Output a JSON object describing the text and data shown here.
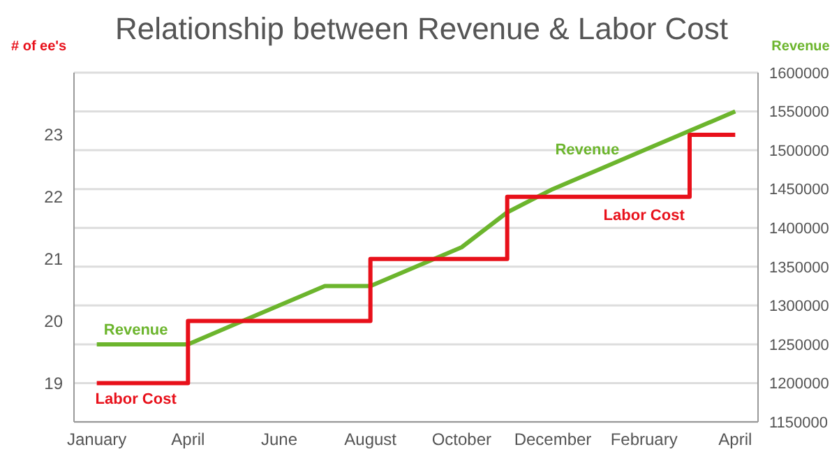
{
  "chart_data": {
    "type": "line",
    "title": "Relationship between Revenue & Labor Cost",
    "ylabel": "# of ee's",
    "y2label": "Revenue",
    "categories": [
      "January",
      null,
      "April",
      null,
      "June",
      null,
      "August",
      null,
      "October",
      null,
      "December",
      null,
      "February",
      null,
      "April"
    ],
    "ylim": [
      18.375,
      24
    ],
    "yticks": [
      19,
      20,
      21,
      22,
      23
    ],
    "y2lim": [
      1150000,
      1600000
    ],
    "y2ticks": [
      1150000,
      1200000,
      1250000,
      1300000,
      1350000,
      1400000,
      1450000,
      1500000,
      1550000,
      1600000
    ],
    "series": [
      {
        "name": "Revenue",
        "axis": "y2",
        "color": "#6cb52d",
        "values": [
          1250000,
          1250000,
          1250000,
          1275000,
          1300000,
          1325000,
          1325000,
          1350000,
          1375000,
          1420000,
          1450000,
          1475000,
          1500000,
          1525000,
          1550000
        ]
      },
      {
        "name": "Labor Cost",
        "type": "step",
        "color": "#e8101a",
        "values": [
          19,
          19,
          20,
          20,
          20,
          20,
          21,
          21,
          21,
          22,
          22,
          22,
          22,
          23,
          23
        ]
      }
    ],
    "annotations": [
      "Revenue",
      "Labor Cost"
    ],
    "grid": "y2",
    "marker": "none"
  }
}
